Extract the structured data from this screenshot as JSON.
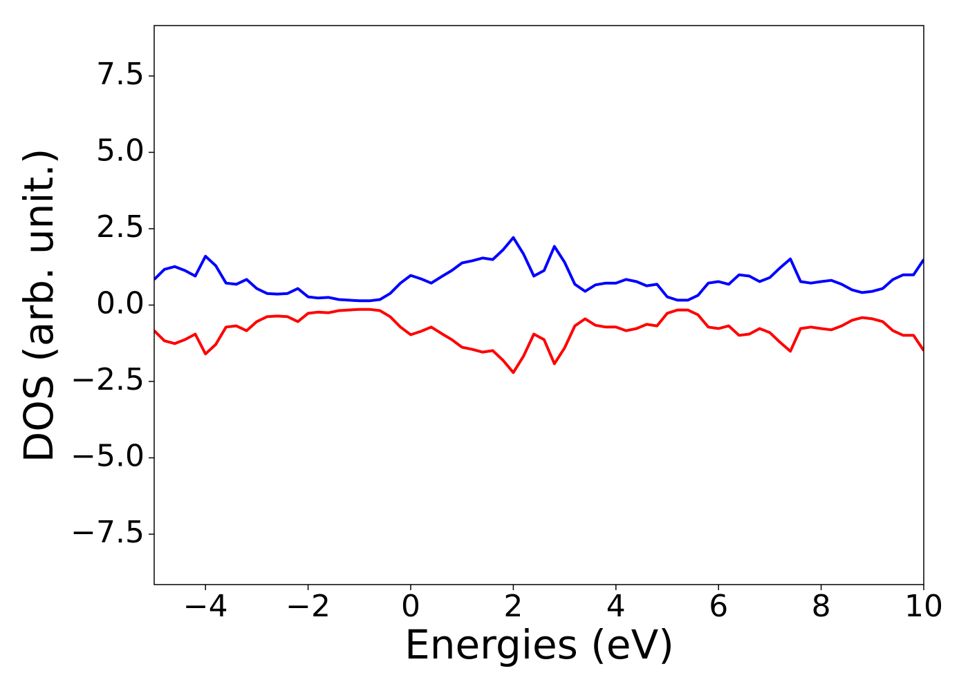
{
  "chart_data": {
    "type": "line",
    "xlabel": "Energies (eV)",
    "ylabel": "DOS (arb. unit.)",
    "x": [
      -5,
      -4.8,
      -4.6,
      -4.4,
      -4.2,
      -4,
      -3.8,
      -3.6,
      -3.4,
      -3.2,
      -3,
      -2.8,
      -2.6,
      -2.4,
      -2.2,
      -2,
      -1.8,
      -1.6,
      -1.4,
      -1.2,
      -1,
      -0.8,
      -0.6,
      -0.4,
      -0.2,
      0,
      0.2,
      0.4,
      0.6,
      0.8,
      1,
      1.2,
      1.4,
      1.6,
      1.8,
      2,
      2.2,
      2.4,
      2.6,
      2.8,
      3,
      3.2,
      3.4,
      3.6,
      3.8,
      4,
      4.2,
      4.4,
      4.6,
      4.8,
      5,
      5.2,
      5.4,
      5.6,
      5.8,
      6,
      6.2,
      6.4,
      6.6,
      6.8,
      7,
      7.2,
      7.4,
      7.6,
      7.8,
      8,
      8.2,
      8.4,
      8.6,
      8.8,
      9,
      9.2,
      9.4,
      9.6,
      9.8,
      10
    ],
    "series": [
      {
        "color": "#0000ff",
        "values": [
          0.84,
          1.17,
          1.26,
          1.13,
          0.95,
          1.6,
          1.29,
          0.72,
          0.68,
          0.84,
          0.54,
          0.38,
          0.36,
          0.38,
          0.54,
          0.27,
          0.23,
          0.25,
          0.18,
          0.16,
          0.14,
          0.14,
          0.18,
          0.38,
          0.72,
          0.97,
          0.86,
          0.72,
          0.93,
          1.13,
          1.38,
          1.45,
          1.54,
          1.49,
          1.81,
          2.21,
          1.67,
          0.95,
          1.13,
          1.92,
          1.4,
          0.68,
          0.45,
          0.66,
          0.72,
          0.72,
          0.84,
          0.77,
          0.63,
          0.68,
          0.27,
          0.16,
          0.16,
          0.32,
          0.72,
          0.77,
          0.68,
          0.99,
          0.95,
          0.77,
          0.9,
          1.22,
          1.51,
          0.77,
          0.72,
          0.77,
          0.81,
          0.68,
          0.5,
          0.41,
          0.45,
          0.54,
          0.84,
          0.99,
          0.99,
          1.49
        ]
      },
      {
        "color": "#ff0000",
        "values": [
          -0.84,
          -1.17,
          -1.26,
          -1.13,
          -0.95,
          -1.6,
          -1.29,
          -0.72,
          -0.68,
          -0.84,
          -0.54,
          -0.38,
          -0.36,
          -0.38,
          -0.54,
          -0.27,
          -0.23,
          -0.25,
          -0.18,
          -0.16,
          -0.14,
          -0.14,
          -0.18,
          -0.38,
          -0.72,
          -0.97,
          -0.86,
          -0.72,
          -0.93,
          -1.13,
          -1.38,
          -1.45,
          -1.54,
          -1.49,
          -1.81,
          -2.21,
          -1.67,
          -0.95,
          -1.13,
          -1.92,
          -1.4,
          -0.68,
          -0.45,
          -0.66,
          -0.72,
          -0.72,
          -0.84,
          -0.77,
          -0.63,
          -0.68,
          -0.27,
          -0.16,
          -0.16,
          -0.32,
          -0.72,
          -0.77,
          -0.68,
          -0.99,
          -0.95,
          -0.77,
          -0.9,
          -1.22,
          -1.51,
          -0.77,
          -0.72,
          -0.77,
          -0.81,
          -0.68,
          -0.5,
          -0.41,
          -0.45,
          -0.54,
          -0.84,
          -0.99,
          -0.99,
          -1.49
        ]
      }
    ],
    "xlim": [
      -5,
      10
    ],
    "xticks": [
      {
        "value": -4,
        "label": "−4"
      },
      {
        "value": -2,
        "label": "−2"
      },
      0,
      2,
      4,
      6,
      8,
      10
    ],
    "ylim": [
      -9.15,
      9.15
    ],
    "yticks": [
      {
        "value": -7.5,
        "label": "−7.5"
      },
      {
        "value": -5,
        "label": "−5.0"
      },
      {
        "value": -2.5,
        "label": "−2.5"
      },
      {
        "value": 0,
        "label": "0.0"
      },
      {
        "value": 2.5,
        "label": "2.5"
      },
      {
        "value": 5,
        "label": "5.0"
      },
      {
        "value": 7.5,
        "label": "7.5"
      }
    ],
    "grid": false
  }
}
